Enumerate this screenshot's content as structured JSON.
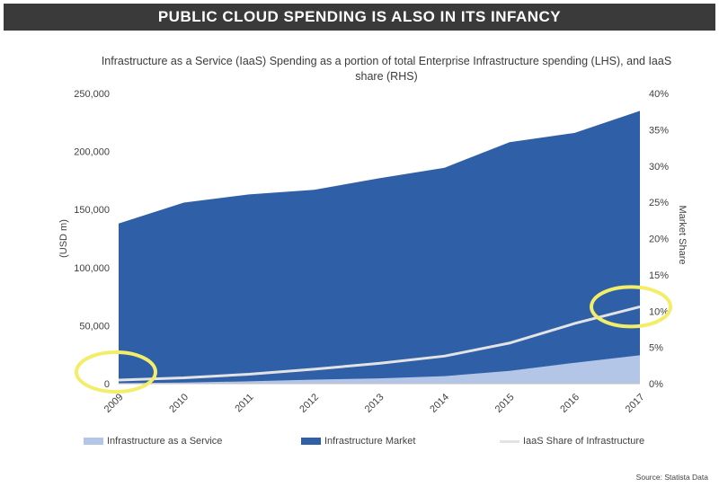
{
  "title": "PUBLIC CLOUD SPENDING IS ALSO IN ITS INFANCY",
  "source": "Source: Statista Data",
  "colors": {
    "iaas": "#b4c6e7",
    "market": "#2f5fa7",
    "share": "#e3e3e3",
    "highlight": "#f2ee6a"
  },
  "chart_data": {
    "type": "area",
    "title": "Infrastructure as a Service (IaaS) Spending as a portion of total Enterprise Infrastructure spending (LHS), and IaaS share (RHS)",
    "categories": [
      "2009",
      "2010",
      "2011",
      "2012",
      "2013",
      "2014",
      "2015",
      "2016",
      "2017"
    ],
    "ylabel": "(USD m)",
    "y2label": "Market Share",
    "ylim": [
      0,
      250000
    ],
    "y2lim": [
      0,
      0.4
    ],
    "yticks": [
      "0",
      "50,000",
      "100,000",
      "150,000",
      "200,000",
      "250,000"
    ],
    "y2ticks": [
      "0%",
      "5%",
      "10%",
      "15%",
      "20%",
      "25%",
      "30%",
      "35%",
      "40%"
    ],
    "series": [
      {
        "name": "Infrastructure as a Service",
        "type": "area",
        "axis": "left",
        "values": [
          500,
          1000,
          2000,
          3500,
          4500,
          6500,
          11000,
          18000,
          24500
        ]
      },
      {
        "name": "Infrastructure Market",
        "type": "area",
        "axis": "left",
        "values": [
          138000,
          156000,
          163000,
          167000,
          177000,
          186000,
          208000,
          216000,
          235000
        ]
      },
      {
        "name": "IaaS Share of Infrastructure",
        "type": "line",
        "axis": "right",
        "values": [
          0.005,
          0.008,
          0.013,
          0.02,
          0.028,
          0.038,
          0.056,
          0.083,
          0.106
        ]
      }
    ],
    "highlight_circles": [
      "2009",
      "2017"
    ],
    "grid": false,
    "legend_position": "bottom"
  }
}
